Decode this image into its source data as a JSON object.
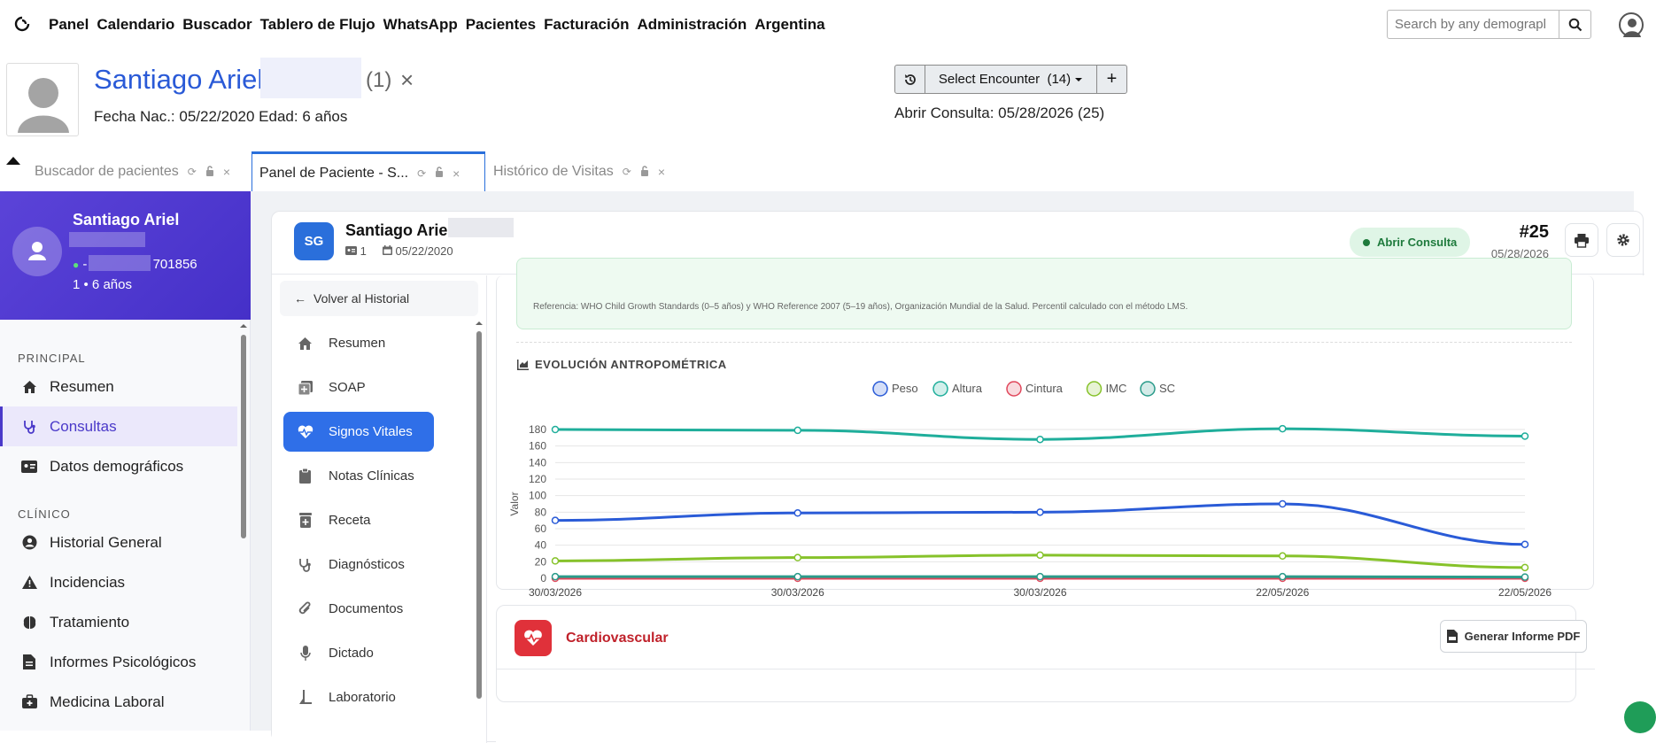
{
  "nav": {
    "items": [
      "Panel",
      "Calendario",
      "Buscador",
      "Tablero de Flujo",
      "WhatsApp",
      "Pacientes",
      "Facturación",
      "Administración",
      "Argentina"
    ],
    "search_placeholder": "Search by any demograpl"
  },
  "patient_header": {
    "name": "Santiago Ariel",
    "count": "(1)",
    "close": "×",
    "dob_line": "Fecha Nac.: 05/22/2020 Edad: 6 años",
    "encounter_label": "Select Encounter",
    "encounter_count": "(14)",
    "add": "+",
    "open_consult": "Abrir Consulta: 05/28/2026 (25)"
  },
  "tabs": [
    {
      "label": "Buscador de pacientes",
      "active": false
    },
    {
      "label": "Panel de Paciente - S...",
      "active": true
    },
    {
      "label": "Histórico de Visitas",
      "active": false
    }
  ],
  "sidebar": {
    "card": {
      "name": "Santiago Ariel",
      "phone_suffix": "701856",
      "phone_prefix": "-",
      "age": "1 • 6 años"
    },
    "sections": [
      {
        "title": "PRINCIPAL",
        "items": [
          {
            "label": "Resumen",
            "icon": "home-icon",
            "active": false
          },
          {
            "label": "Consultas",
            "icon": "stethoscope-icon",
            "active": true
          },
          {
            "label": "Datos demográficos",
            "icon": "id-card-icon",
            "active": false
          }
        ]
      },
      {
        "title": "CLÍNICO",
        "items": [
          {
            "label": "Historial General",
            "icon": "user-circle-icon",
            "active": false
          },
          {
            "label": "Incidencias",
            "icon": "warning-icon",
            "active": false
          },
          {
            "label": "Tratamiento",
            "icon": "brain-icon",
            "active": false
          },
          {
            "label": "Informes Psicológicos",
            "icon": "document-icon",
            "active": false
          },
          {
            "label": "Medicina Laboral",
            "icon": "briefcase-medical-icon",
            "active": false
          }
        ]
      }
    ]
  },
  "main_header": {
    "initials": "SG",
    "name": "Santiago Ariel",
    "meta_id": "1",
    "meta_date": "05/22/2020",
    "status": "Abrir Consulta",
    "number": "#25",
    "number_date": "05/28/2026"
  },
  "inner_nav": {
    "back": "Volver al Historial",
    "items": [
      {
        "label": "Resumen",
        "icon": "home-icon",
        "active": false
      },
      {
        "label": "SOAP",
        "icon": "notes-plus-icon",
        "active": false
      },
      {
        "label": "Signos Vitales",
        "icon": "heart-pulse-icon",
        "active": true
      },
      {
        "label": "Notas Clínicas",
        "icon": "clipboard-icon",
        "active": false
      },
      {
        "label": "Receta",
        "icon": "prescription-icon",
        "active": false
      },
      {
        "label": "Diagnósticos",
        "icon": "stethoscope-icon",
        "active": false
      },
      {
        "label": "Documentos",
        "icon": "paperclip-icon",
        "active": false
      },
      {
        "label": "Dictado",
        "icon": "microphone-icon",
        "active": false
      },
      {
        "label": "Laboratorio",
        "icon": "flask-icon",
        "active": false
      }
    ]
  },
  "content": {
    "reference": "Referencia: WHO Child Growth Standards (0–5 años) y WHO Reference 2007 (5–19 años), Organización Mundial de la Salud. Percentil calculado con el método LMS.",
    "section_title": "EVOLUCIÓN ANTROPOMÉTRICA",
    "cardio_title": "Cardiovascular",
    "pdf_button": "Generar Informe PDF"
  },
  "chart_data": {
    "type": "line",
    "categories": [
      "30/03/2026",
      "30/03/2026",
      "30/03/2026",
      "22/05/2026",
      "22/05/2026"
    ],
    "ylabel": "Valor",
    "ylim": [
      0,
      180
    ],
    "yticks": [
      0,
      20,
      40,
      60,
      80,
      100,
      120,
      140,
      160,
      180
    ],
    "legend_position": "top-center",
    "grid": true,
    "series": [
      {
        "name": "Peso",
        "color": "#2a5bd7",
        "values": [
          70,
          79,
          80,
          90,
          41
        ]
      },
      {
        "name": "Altura",
        "color": "#1fae9b",
        "values": [
          180,
          179,
          168,
          181,
          172
        ]
      },
      {
        "name": "Cintura",
        "color": "#e0475b",
        "values": [
          0,
          0,
          0,
          0,
          0
        ]
      },
      {
        "name": "IMC",
        "color": "#86c22a",
        "values": [
          21,
          25,
          28,
          27,
          13
        ]
      },
      {
        "name": "SC",
        "color": "#2a9b8a",
        "values": [
          2,
          2,
          2,
          2,
          1.5
        ]
      }
    ]
  }
}
